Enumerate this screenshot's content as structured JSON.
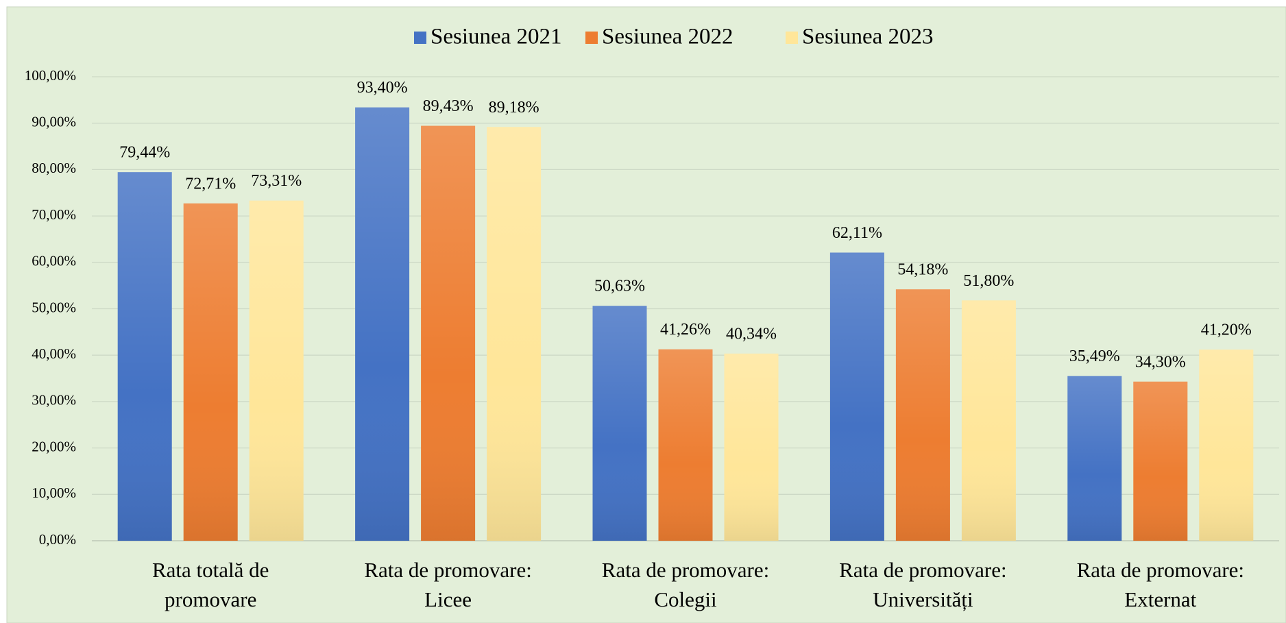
{
  "chart_data": {
    "type": "bar",
    "categories": [
      "Rata totală de promovare",
      "Rata de promovare: Licee",
      "Rata de promovare: Colegii",
      "Rata de promovare: Universități",
      "Rata de promovare: Externat"
    ],
    "series": [
      {
        "name": "Sesiunea 2021",
        "color": "#4472c4",
        "values": [
          79.44,
          93.4,
          50.63,
          62.11,
          35.49
        ],
        "value_labels": [
          "79,44%",
          "93,40%",
          "50,63%",
          "62,11%",
          "35,49%"
        ]
      },
      {
        "name": "Sesiunea 2022",
        "color": "#ed7d31",
        "values": [
          72.71,
          89.43,
          41.26,
          54.18,
          34.3
        ],
        "value_labels": [
          "72,71%",
          "89,43%",
          "41,26%",
          "54,18%",
          "34,30%"
        ]
      },
      {
        "name": "Sesiunea 2023",
        "color": "#ffe699",
        "values": [
          73.31,
          89.18,
          40.34,
          51.8,
          41.2
        ],
        "value_labels": [
          "73,31%",
          "89,18%",
          "40,34%",
          "51,80%",
          "41,20%"
        ]
      }
    ],
    "ylim": [
      0,
      100
    ],
    "yticks": [
      {
        "value": 0,
        "label": "0,00%"
      },
      {
        "value": 10,
        "label": "10,00%"
      },
      {
        "value": 20,
        "label": "20,00%"
      },
      {
        "value": 30,
        "label": "30,00%"
      },
      {
        "value": 40,
        "label": "40,00%"
      },
      {
        "value": 50,
        "label": "50,00%"
      },
      {
        "value": 60,
        "label": "60,00%"
      },
      {
        "value": 70,
        "label": "70,00%"
      },
      {
        "value": 80,
        "label": "80,00%"
      },
      {
        "value": 90,
        "label": "90,00%"
      },
      {
        "value": 100,
        "label": "100,00%"
      }
    ],
    "grid": true,
    "legend": "top"
  }
}
